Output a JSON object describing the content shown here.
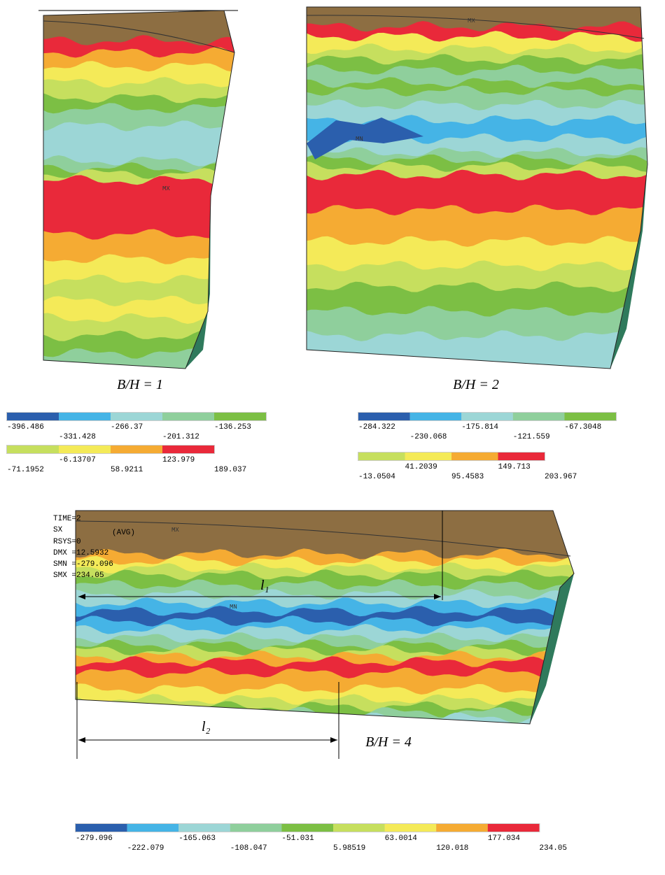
{
  "panels": [
    {
      "caption": "B/H = 1",
      "markers": [
        "MX"
      ],
      "legend": [
        [
          "-396.486",
          "-331.428",
          "-266.37",
          "-201.312",
          "-136.253"
        ],
        [
          "-71.1952",
          "-6.13707",
          "58.9211",
          "123.979",
          "189.037"
        ]
      ]
    },
    {
      "caption": "B/H = 2",
      "markers": [
        "MX",
        "MN"
      ],
      "legend": [
        [
          "-284.322",
          "-230.068",
          "-175.814",
          "-121.559",
          "-67.3048"
        ],
        [
          "-13.0504",
          "41.2039",
          "95.4583",
          "149.713",
          "203.967"
        ]
      ]
    },
    {
      "caption": "B/H = 4",
      "markers": [
        "MX",
        "MN"
      ],
      "info": [
        "TIME=2",
        "SX",
        "(AVG)",
        "RSYS=0",
        "DMX =12.5932",
        "SMN =-279.096",
        "SMX =234.05"
      ],
      "dimensions": [
        "l₁",
        "l₂"
      ],
      "legend": [
        [
          "-279.096",
          "-222.079",
          "-165.063",
          "-108.047",
          "-51.031",
          "5.98519",
          "63.0014",
          "120.018",
          "177.034",
          "234.05"
        ]
      ]
    }
  ]
}
